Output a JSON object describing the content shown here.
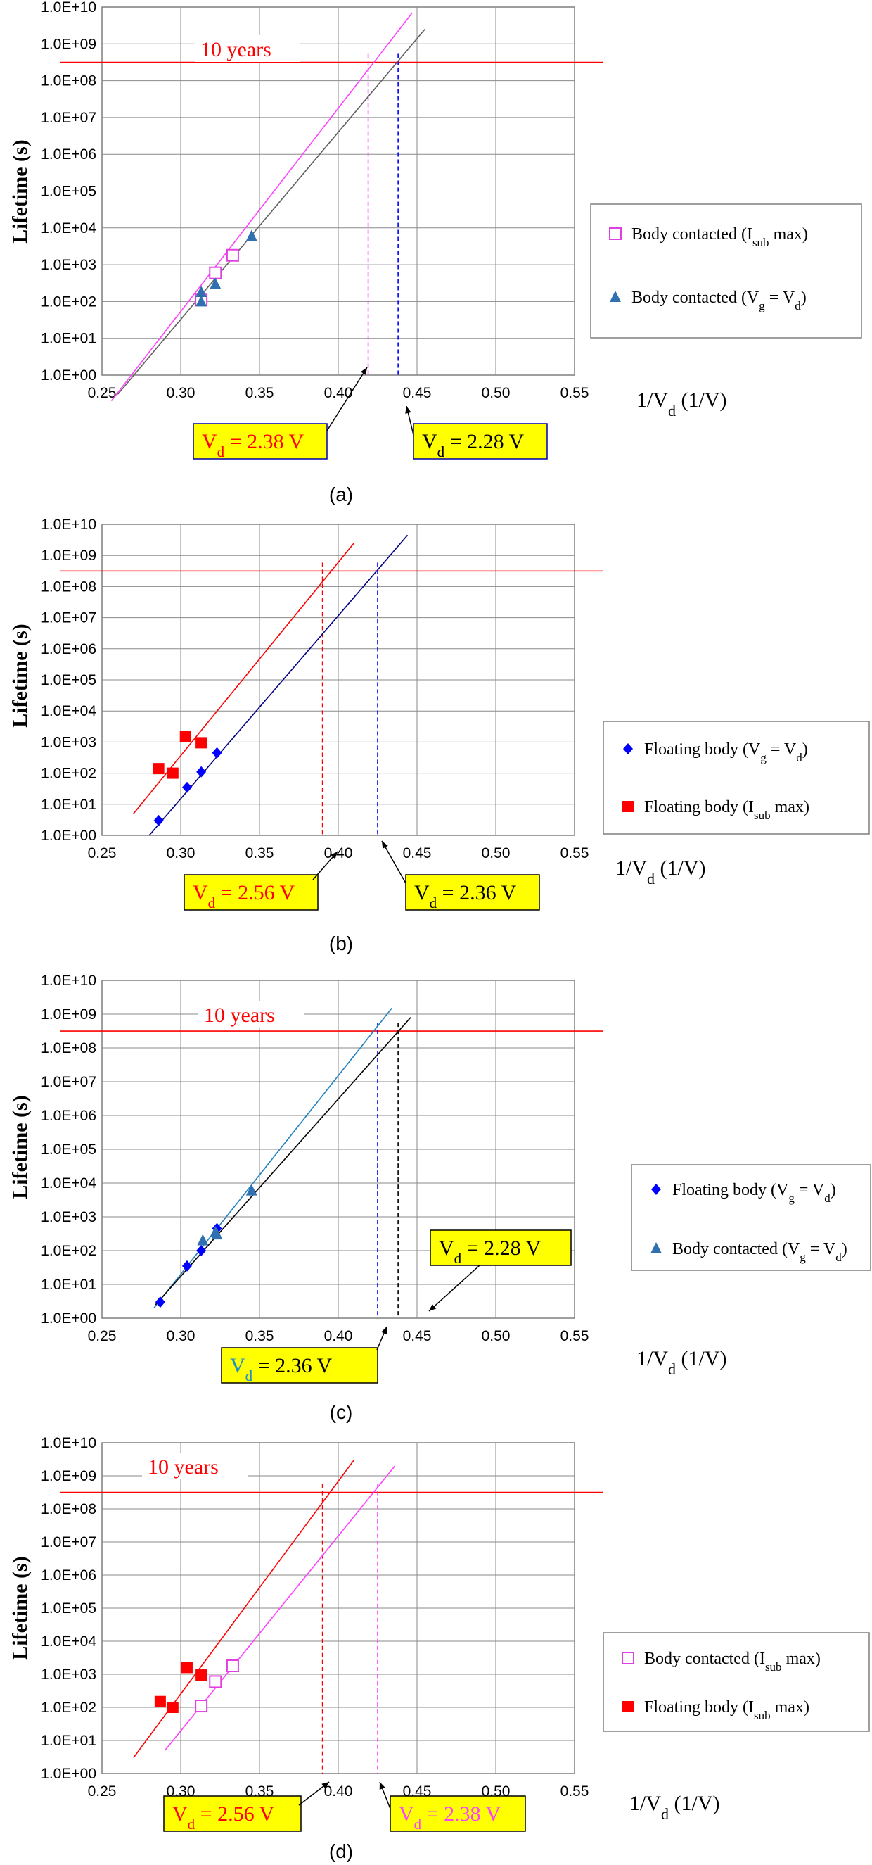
{
  "chart_data": [
    {
      "panel_label": "(a)",
      "type": "scatter",
      "ylabel": "Lifetime (s)",
      "xlabel": "1/V",
      "xlabel_sub": "d",
      "xlabel_suffix": " (1/V)",
      "xlim": [
        0.25,
        0.55
      ],
      "ylim": [
        1,
        10000000000
      ],
      "y_scale": "log",
      "x_ticks": [
        "0.25",
        "0.30",
        "0.35",
        "0.40",
        "0.45",
        "0.50",
        "0.55"
      ],
      "y_ticks": [
        "1.0E+00",
        "1.0E+01",
        "1.0E+02",
        "1.0E+03",
        "1.0E+04",
        "1.0E+05",
        "1.0E+06",
        "1.0E+07",
        "1.0E+08",
        "1.0E+09",
        "1.0E+10"
      ],
      "grid": true,
      "legend_position": "right",
      "hline": {
        "y": 315000000,
        "color": "#ff0000",
        "label": "10 years"
      },
      "series": [
        {
          "name": "Body contacted  (Isub max)",
          "name_main": "Body contacted  (I",
          "name_sub": "sub",
          "name_tail": " max)",
          "marker": "square-open",
          "color": "#e040e0",
          "x": [
            0.313,
            0.322,
            0.333
          ],
          "y": [
            110,
            600,
            1800
          ]
        },
        {
          "name": "Body contacted  (Vg = Vd)",
          "name_main": "Body contacted  (V",
          "name_sub": "g",
          "name_tail": " = V",
          "name_sub2": "d",
          "name_end": ")",
          "marker": "triangle",
          "color": "#3070b0",
          "x": [
            0.313,
            0.313,
            0.322,
            0.345
          ],
          "y": [
            100,
            180,
            300,
            6000
          ]
        }
      ],
      "fits": [
        {
          "color": "#ff40ff",
          "x": [
            0.256,
            0.447
          ],
          "y": [
            0.2,
            7000000000
          ]
        },
        {
          "color": "#606060",
          "x": [
            0.26,
            0.455
          ],
          "y": [
            0.3,
            2500000000
          ]
        }
      ],
      "vlines": [
        {
          "x": 0.419,
          "color": "#ff40ff"
        },
        {
          "x": 0.438,
          "color": "#0000ff"
        }
      ],
      "callouts": [
        {
          "text_main": "V",
          "text_sub": "d",
          "text_tail": " = 2.38 V",
          "color": "#ff0000",
          "box_color": "#ffff00",
          "border": "#0000aa"
        },
        {
          "text_main": "V",
          "text_sub": "d",
          "text_tail": " = 2.28 V",
          "color": "#000000",
          "box_color": "#ffff00",
          "border": "#0000aa"
        }
      ]
    },
    {
      "panel_label": "(b)",
      "type": "scatter",
      "ylabel": "Lifetime (s)",
      "xlabel": "1/V",
      "xlabel_sub": "d",
      "xlabel_suffix": " (1/V)",
      "xlim": [
        0.25,
        0.55
      ],
      "ylim": [
        1,
        10000000000
      ],
      "y_scale": "log",
      "x_ticks": [
        "0.25",
        "0.30",
        "0.35",
        "0.40",
        "0.45",
        "0.50",
        "0.55"
      ],
      "y_ticks": [
        "1.0E+00",
        "1.0E+01",
        "1.0E+02",
        "1.0E+03",
        "1.0E+04",
        "1.0E+05",
        "1.0E+06",
        "1.0E+07",
        "1.0E+08",
        "1.0E+09",
        "1.0E+10"
      ],
      "grid": true,
      "legend_position": "right",
      "hline": {
        "y": 315000000,
        "color": "#ff0000",
        "label": ""
      },
      "series": [
        {
          "name": "Floating body  (Vg = Vd)",
          "name_main": "Floating body  (V",
          "name_sub": "g",
          "name_tail": " = V",
          "name_sub2": "d",
          "name_end": ")",
          "marker": "diamond",
          "color": "#0000ff",
          "x": [
            0.286,
            0.304,
            0.313,
            0.323
          ],
          "y": [
            3,
            35,
            110,
            450
          ]
        },
        {
          "name": "Floating body  (Isub max)",
          "name_main": "Floating body  (I",
          "name_sub": "sub",
          "name_tail": " max)",
          "marker": "square",
          "color": "#ff0000",
          "x": [
            0.286,
            0.295,
            0.303,
            0.313
          ],
          "y": [
            140,
            100,
            1500,
            950
          ]
        }
      ],
      "fits": [
        {
          "color": "#ff0000",
          "x": [
            0.27,
            0.41
          ],
          "y": [
            5,
            2500000000
          ]
        },
        {
          "color": "#000080",
          "x": [
            0.28,
            0.444
          ],
          "y": [
            1,
            4500000000
          ]
        }
      ],
      "vlines": [
        {
          "x": 0.39,
          "color": "#ff0000"
        },
        {
          "x": 0.425,
          "color": "#0000ff"
        }
      ],
      "callouts": [
        {
          "text_main": "V",
          "text_sub": "d",
          "text_tail": " = 2.56 V",
          "color": "#ff0000",
          "box_color": "#ffff00",
          "border": "#000000"
        },
        {
          "text_main": "V",
          "text_sub": "d",
          "text_tail": " = 2.36 V",
          "color": "#000000",
          "box_color": "#ffff00",
          "border": "#000000"
        }
      ]
    },
    {
      "panel_label": "(c)",
      "type": "scatter",
      "ylabel": "Lifetime (s)",
      "xlabel": "1/V",
      "xlabel_sub": "d",
      "xlabel_suffix": " (1/V)",
      "xlim": [
        0.25,
        0.55
      ],
      "ylim": [
        1,
        10000000000
      ],
      "y_scale": "log",
      "x_ticks": [
        "0.25",
        "0.30",
        "0.35",
        "0.40",
        "0.45",
        "0.50",
        "0.55"
      ],
      "y_ticks": [
        "1.0E+00",
        "1.0E+01",
        "1.0E+02",
        "1.0E+03",
        "1.0E+04",
        "1.0E+05",
        "1.0E+06",
        "1.0E+07",
        "1.0E+08",
        "1.0E+09",
        "1.0E+10"
      ],
      "grid": true,
      "legend_position": "right",
      "hline": {
        "y": 315000000,
        "color": "#ff0000",
        "label": "10 years"
      },
      "series": [
        {
          "name": "Floating body  (Vg = Vd)",
          "name_main": "Floating body  (V",
          "name_sub": "g",
          "name_tail": " = V",
          "name_sub2": "d",
          "name_end": ")",
          "marker": "diamond",
          "color": "#0000ff",
          "x": [
            0.287,
            0.304,
            0.313,
            0.323
          ],
          "y": [
            3,
            35,
            100,
            450
          ]
        },
        {
          "name": "Body contacted  (Vg = Vd)",
          "name_main": "Body contacted  (V",
          "name_sub": "g",
          "name_tail": " = V",
          "name_sub2": "d",
          "name_end": ")",
          "marker": "triangle",
          "color": "#3070b0",
          "x": [
            0.314,
            0.322,
            0.323,
            0.345
          ],
          "y": [
            200,
            350,
            300,
            6000
          ]
        }
      ],
      "fits": [
        {
          "color": "#2080c0",
          "x": [
            0.283,
            0.434
          ],
          "y": [
            2,
            1500000000
          ]
        },
        {
          "color": "#000000",
          "x": [
            0.284,
            0.446
          ],
          "y": [
            2.5,
            800000000
          ]
        }
      ],
      "vlines": [
        {
          "x": 0.425,
          "color": "#0000ff"
        },
        {
          "x": 0.438,
          "color": "#000000"
        }
      ],
      "callouts": [
        {
          "text_main": "V",
          "text_sub": "d",
          "text_tail": " = 2.36 V",
          "color": "#000000",
          "first_color": "#2090c0",
          "box_color": "#ffff00",
          "border": "#000000"
        },
        {
          "text_main": "V",
          "text_sub": "d",
          "text_tail": " = 2.28 V",
          "color": "#000000",
          "box_color": "#ffff00",
          "border": "#000000"
        }
      ]
    },
    {
      "panel_label": "(d)",
      "type": "scatter",
      "ylabel": "Lifetime (s)",
      "xlabel": "1/V",
      "xlabel_sub": "d",
      "xlabel_suffix": " (1/V)",
      "xlim": [
        0.25,
        0.55
      ],
      "ylim": [
        1,
        10000000000
      ],
      "y_scale": "log",
      "x_ticks": [
        "0.25",
        "0.30",
        "0.35",
        "0.40",
        "0.45",
        "0.50",
        "0.55"
      ],
      "y_ticks": [
        "1.0E+00",
        "1.0E+01",
        "1.0E+02",
        "1.0E+03",
        "1.0E+04",
        "1.0E+05",
        "1.0E+06",
        "1.0E+07",
        "1.0E+08",
        "1.0E+09",
        "1.0E+10"
      ],
      "grid": true,
      "legend_position": "right",
      "hline": {
        "y": 315000000,
        "color": "#ff0000",
        "label": "10 years"
      },
      "series": [
        {
          "name": "Body contacted  (Isub max)",
          "name_main": "Body contacted  (I",
          "name_sub": "sub",
          "name_tail": " max)",
          "marker": "square-open",
          "color": "#e040e0",
          "x": [
            0.313,
            0.322,
            0.333
          ],
          "y": [
            110,
            600,
            1800
          ]
        },
        {
          "name": "Floating body  (Isub max)",
          "name_main": "Floating body  (I",
          "name_sub": "sub",
          "name_tail": " max)",
          "marker": "square",
          "color": "#ff0000",
          "x": [
            0.287,
            0.295,
            0.304,
            0.313
          ],
          "y": [
            150,
            100,
            1600,
            950
          ]
        }
      ],
      "fits": [
        {
          "color": "#ff0000",
          "x": [
            0.27,
            0.41
          ],
          "y": [
            3,
            3000000000
          ]
        },
        {
          "color": "#ff40ff",
          "x": [
            0.29,
            0.436
          ],
          "y": [
            5,
            2000000000
          ]
        }
      ],
      "vlines": [
        {
          "x": 0.39,
          "color": "#ff0000"
        },
        {
          "x": 0.425,
          "color": "#ff40ff"
        }
      ],
      "callouts": [
        {
          "text_main": "V",
          "text_sub": "d",
          "text_tail": " = 2.56 V",
          "color": "#ff0000",
          "box_color": "#ffff00",
          "border": "#000000"
        },
        {
          "text_main": "V",
          "text_sub": "d",
          "text_tail": " = 2.38 V",
          "color": "#ff40ff",
          "box_color": "#ffff00",
          "border": "#000000"
        }
      ]
    }
  ]
}
